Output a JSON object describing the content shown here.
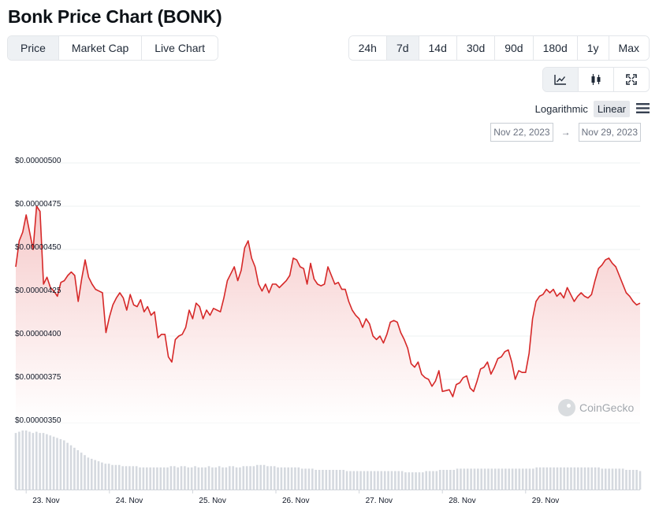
{
  "page": {
    "title": "Bonk Price Chart (BONK)"
  },
  "view_tabs": [
    {
      "label": "Price",
      "active": true
    },
    {
      "label": "Market Cap",
      "active": false
    },
    {
      "label": "Live Chart",
      "active": false
    }
  ],
  "range_tabs": [
    {
      "label": "24h",
      "active": false
    },
    {
      "label": "7d",
      "active": true
    },
    {
      "label": "14d",
      "active": false
    },
    {
      "label": "30d",
      "active": false
    },
    {
      "label": "90d",
      "active": false
    },
    {
      "label": "180d",
      "active": false
    },
    {
      "label": "1y",
      "active": false
    },
    {
      "label": "Max",
      "active": false
    }
  ],
  "chart_type_tabs": [
    {
      "icon": "line-chart-icon",
      "active": true
    },
    {
      "icon": "candlestick-icon",
      "active": false
    },
    {
      "icon": "fullscreen-icon",
      "active": false
    }
  ],
  "scale": {
    "logarithmic_label": "Logarithmic",
    "linear_label": "Linear",
    "active": "Linear",
    "menu_icon": "hamburger-menu-icon"
  },
  "date_range": {
    "from": "Nov 22, 2023",
    "to": "Nov 29, 2023",
    "separator": "→"
  },
  "watermark": {
    "text": "CoinGecko",
    "icon": "coingecko-logo-icon"
  },
  "colors": {
    "line": "#d62828",
    "area_top": "#f6c9c9",
    "volume_bar": "#d5d9df",
    "grid": "#eef0f2"
  },
  "chart_data": {
    "type": "area",
    "title": "",
    "xlabel": "",
    "ylabel": "",
    "ylim": [
      3.5e-06,
      5e-06
    ],
    "yticks": [
      "$0.00000500",
      "$0.00000475",
      "$0.00000450",
      "$0.00000425",
      "$0.00000400",
      "$0.00000375",
      "$0.00000350"
    ],
    "yscale": "linear",
    "xticks": [
      "23. Nov",
      "24. Nov",
      "25. Nov",
      "26. Nov",
      "27. Nov",
      "28. Nov",
      "29. Nov"
    ],
    "x_start": "2023-11-22T21:00",
    "x_step_hours": 1,
    "grid": true,
    "legend": "none",
    "series": [
      {
        "values": [
          4.4,
          4.55,
          4.6,
          4.7,
          4.6,
          4.5,
          4.75,
          4.72,
          4.3,
          4.34,
          4.28,
          4.26,
          4.23,
          4.31,
          4.32,
          4.35,
          4.37,
          4.35,
          4.2,
          4.33,
          4.44,
          4.34,
          4.3,
          4.27,
          4.26,
          4.25,
          4.02,
          4.11,
          4.18,
          4.22,
          4.25,
          4.22,
          4.15,
          4.24,
          4.18,
          4.17,
          4.21,
          4.14,
          4.17,
          4.12,
          4.14,
          3.99,
          4.01,
          4.01,
          3.88,
          3.85,
          3.98,
          4.0,
          4.01,
          4.05,
          4.15,
          4.1,
          4.19,
          4.17,
          4.1,
          4.15,
          4.12,
          4.16,
          4.15,
          4.14,
          4.22,
          4.32,
          4.36,
          4.4,
          4.32,
          4.38,
          4.51,
          4.55,
          4.45,
          4.4,
          4.3,
          4.26,
          4.3,
          4.25,
          4.3,
          4.3,
          4.28,
          4.3,
          4.32,
          4.35,
          4.45,
          4.44,
          4.4,
          4.39,
          4.3,
          4.42,
          4.33,
          4.3,
          4.29,
          4.3,
          4.4,
          4.35,
          4.3,
          4.31,
          4.27,
          4.27,
          4.2,
          4.15,
          4.12,
          4.1,
          4.05,
          4.1,
          4.07,
          4.0,
          3.98,
          4.0,
          3.96,
          4.01,
          4.08,
          4.09,
          4.08,
          4.02,
          3.98,
          3.93,
          3.84,
          3.82,
          3.85,
          3.78,
          3.76,
          3.75,
          3.71,
          3.74,
          3.8,
          3.68,
          3.685,
          3.69,
          3.65,
          3.72,
          3.73,
          3.76,
          3.77,
          3.7,
          3.68,
          3.74,
          3.81,
          3.82,
          3.85,
          3.78,
          3.82,
          3.87,
          3.88,
          3.91,
          3.92,
          3.85,
          3.75,
          3.8,
          3.79,
          3.79,
          3.9,
          4.1,
          4.2,
          4.23,
          4.24,
          4.27,
          4.25,
          4.27,
          4.23,
          4.25,
          4.22,
          4.28,
          4.24,
          4.2,
          4.23,
          4.25,
          4.23,
          4.22,
          4.24,
          4.32,
          4.39,
          4.41,
          4.44,
          4.45,
          4.42,
          4.4,
          4.35,
          4.3,
          4.25,
          4.23,
          4.2,
          4.18,
          4.19
        ]
      }
    ],
    "volume": [
      0.46,
      0.47,
      0.48,
      0.48,
      0.47,
      0.46,
      0.47,
      0.46,
      0.46,
      0.45,
      0.44,
      0.43,
      0.42,
      0.41,
      0.4,
      0.38,
      0.36,
      0.34,
      0.32,
      0.3,
      0.28,
      0.26,
      0.25,
      0.24,
      0.23,
      0.22,
      0.21,
      0.21,
      0.2,
      0.2,
      0.2,
      0.19,
      0.19,
      0.19,
      0.19,
      0.19,
      0.18,
      0.18,
      0.18,
      0.18,
      0.18,
      0.18,
      0.18,
      0.18,
      0.18,
      0.19,
      0.19,
      0.18,
      0.19,
      0.19,
      0.18,
      0.18,
      0.19,
      0.18,
      0.18,
      0.18,
      0.19,
      0.18,
      0.18,
      0.19,
      0.18,
      0.18,
      0.19,
      0.19,
      0.18,
      0.18,
      0.19,
      0.19,
      0.19,
      0.19,
      0.2,
      0.2,
      0.2,
      0.19,
      0.19,
      0.19,
      0.18,
      0.18,
      0.18,
      0.18,
      0.18,
      0.18,
      0.18,
      0.17,
      0.17,
      0.17,
      0.17,
      0.16,
      0.16,
      0.16,
      0.16,
      0.16,
      0.16,
      0.16,
      0.16,
      0.16,
      0.15,
      0.15,
      0.15,
      0.15,
      0.15,
      0.15,
      0.15,
      0.15,
      0.15,
      0.15,
      0.15,
      0.15,
      0.15,
      0.15,
      0.15,
      0.15,
      0.15,
      0.14,
      0.14,
      0.14,
      0.14,
      0.14,
      0.14,
      0.15,
      0.15,
      0.15,
      0.15,
      0.16,
      0.16,
      0.16,
      0.16,
      0.16,
      0.17,
      0.17,
      0.17,
      0.17,
      0.17,
      0.17,
      0.17,
      0.17,
      0.17,
      0.17,
      0.17,
      0.17,
      0.17,
      0.17,
      0.17,
      0.17,
      0.17,
      0.17,
      0.17,
      0.17,
      0.17,
      0.17,
      0.17,
      0.18,
      0.18,
      0.18,
      0.18,
      0.18,
      0.18,
      0.18,
      0.18,
      0.18,
      0.18,
      0.18,
      0.18,
      0.18,
      0.18,
      0.18,
      0.18,
      0.18,
      0.18,
      0.18,
      0.17,
      0.17,
      0.17,
      0.17,
      0.17,
      0.17,
      0.17,
      0.16,
      0.16,
      0.16,
      0.16,
      0.15
    ]
  }
}
